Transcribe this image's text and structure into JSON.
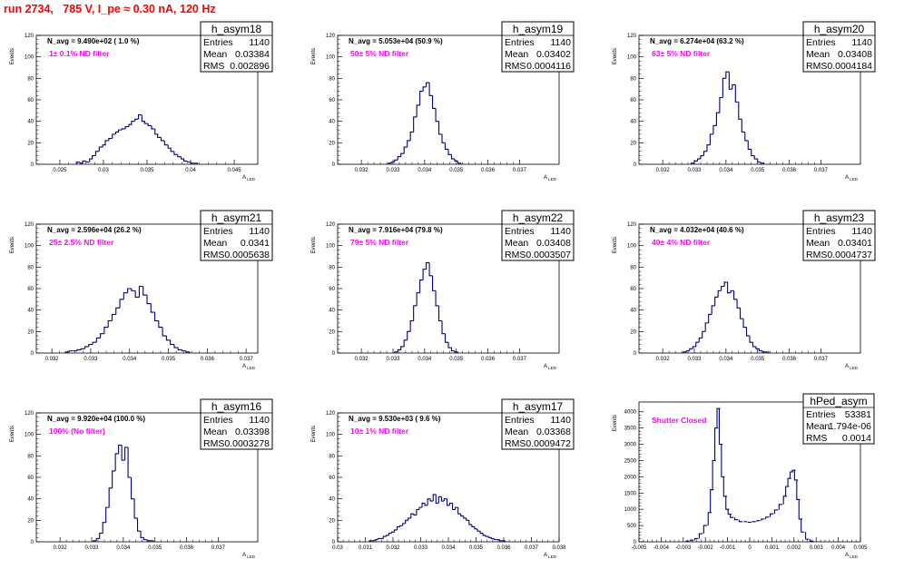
{
  "title": "run 2734,   785 V, I_pe ≈ 0.30 nA, 120 Hz",
  "colors": {
    "title": "#ff0000",
    "hist": "#000080",
    "annotation": "#ff00ff"
  },
  "stats_labels": {
    "entries": "Entries",
    "mean": "Mean",
    "rms": "RMS"
  },
  "y_axis_label": "Events",
  "x_axis_label_main": "A",
  "x_axis_label_sub": "LED",
  "chart_data": [
    {
      "type": "bar",
      "name": "h_asym18",
      "navg": "N_avg = 9.490e+02 ( 1.0 %)",
      "filter": "1± 0.1% ND filter",
      "entries": "1140",
      "mean": "0.03384",
      "rms": "0.002896",
      "xlim": [
        0.0223,
        0.0477
      ],
      "ylim": [
        0,
        120
      ],
      "xticks": [
        "0.025",
        "0.03",
        "0.035",
        "0.04",
        "0.045"
      ],
      "yticks": [
        "0",
        "20",
        "40",
        "60",
        "80",
        "100",
        "120"
      ],
      "x": [
        0.0271,
        0.0275,
        0.0278,
        0.0282,
        0.0286,
        0.0289,
        0.0293,
        0.0297,
        0.0301,
        0.0304,
        0.0308,
        0.0312,
        0.0316,
        0.0319,
        0.0323,
        0.0327,
        0.0331,
        0.0334,
        0.0338,
        0.0342,
        0.0346,
        0.0349,
        0.0353,
        0.0357,
        0.0361,
        0.0364,
        0.0368,
        0.0372,
        0.0376,
        0.0379,
        0.0383,
        0.0387,
        0.0391,
        0.0394,
        0.0398,
        0.0402,
        0.0406
      ],
      "values": [
        2,
        1,
        3,
        2,
        5,
        8,
        12,
        16,
        18,
        22,
        24,
        28,
        30,
        32,
        33,
        35,
        37,
        40,
        42,
        46,
        40,
        38,
        36,
        33,
        28,
        25,
        22,
        18,
        15,
        12,
        9,
        7,
        5,
        3,
        2,
        1,
        1
      ]
    },
    {
      "type": "bar",
      "name": "h_asym19",
      "navg": "N_avg = 5.053e+04 (50.9 %)",
      "filter": "50± 5% ND filter",
      "entries": "1140",
      "mean": "0.03402",
      "rms": "0.0004116",
      "xlim": [
        0.03125,
        0.03825
      ],
      "ylim": [
        0,
        120
      ],
      "xticks": [
        "0.032",
        "0.033",
        "0.034",
        "0.035",
        "0.036",
        "0.037"
      ],
      "yticks": [
        "0",
        "20",
        "40",
        "60",
        "80",
        "100",
        "120"
      ],
      "x": [
        0.0329,
        0.033,
        0.0331,
        0.0332,
        0.0333,
        0.0334,
        0.0335,
        0.0336,
        0.0337,
        0.0338,
        0.0339,
        0.034,
        0.0341,
        0.0342,
        0.0343,
        0.0344,
        0.0345,
        0.0346,
        0.0347,
        0.0348,
        0.0349,
        0.035,
        0.0351
      ],
      "values": [
        1,
        2,
        4,
        7,
        10,
        16,
        22,
        30,
        44,
        55,
        68,
        72,
        76,
        64,
        52,
        40,
        28,
        20,
        14,
        9,
        5,
        3,
        1
      ]
    },
    {
      "type": "bar",
      "name": "h_asym20",
      "navg": "N_avg = 6.274e+04 (63.2 %)",
      "filter": "63± 5% ND filter",
      "entries": "1140",
      "mean": "0.03408",
      "rms": "0.0004184",
      "xlim": [
        0.03125,
        0.03825
      ],
      "ylim": [
        0,
        120
      ],
      "xticks": [
        "0.032",
        "0.033",
        "0.034",
        "0.035",
        "0.036",
        "0.037"
      ],
      "yticks": [
        "0",
        "20",
        "40",
        "60",
        "80",
        "100",
        "120"
      ],
      "x": [
        0.03295,
        0.03305,
        0.03315,
        0.03325,
        0.03335,
        0.03345,
        0.03355,
        0.03365,
        0.03375,
        0.03385,
        0.03395,
        0.03405,
        0.03415,
        0.03425,
        0.03435,
        0.03445,
        0.03455,
        0.03465,
        0.03475,
        0.03485,
        0.03495,
        0.03505,
        0.03515
      ],
      "values": [
        1,
        3,
        5,
        8,
        12,
        18,
        28,
        36,
        48,
        62,
        80,
        86,
        70,
        74,
        58,
        42,
        30,
        22,
        14,
        8,
        5,
        2,
        1
      ]
    },
    {
      "type": "bar",
      "name": "h_asym21",
      "navg": "N_avg = 2.596e+04 (26.2 %)",
      "filter": "25± 2.5% ND filter",
      "entries": "1140",
      "mean": "0.0341",
      "rms": "0.0005638",
      "xlim": [
        0.0316,
        0.0373
      ],
      "ylim": [
        0,
        120
      ],
      "xticks": [
        "0.032",
        "0.033",
        "0.034",
        "0.035",
        "0.036",
        "0.037"
      ],
      "yticks": [
        "0",
        "20",
        "40",
        "60",
        "80",
        "100",
        "120"
      ],
      "x": [
        0.0324,
        0.0325,
        0.0326,
        0.0327,
        0.0328,
        0.0329,
        0.033,
        0.0331,
        0.0332,
        0.0333,
        0.0334,
        0.0335,
        0.0336,
        0.0337,
        0.0338,
        0.0339,
        0.034,
        0.0341,
        0.0342,
        0.0343,
        0.0344,
        0.0345,
        0.0346,
        0.0347,
        0.0348,
        0.0349,
        0.035,
        0.0351,
        0.0352,
        0.0353,
        0.0354,
        0.0355
      ],
      "values": [
        1,
        2,
        2,
        3,
        4,
        6,
        8,
        10,
        14,
        18,
        24,
        30,
        36,
        42,
        50,
        56,
        60,
        58,
        52,
        62,
        54,
        46,
        38,
        30,
        24,
        16,
        12,
        8,
        5,
        3,
        2,
        1
      ]
    },
    {
      "type": "bar",
      "name": "h_asym22",
      "navg": "N_avg = 7.916e+04 (79.8 %)",
      "filter": "79± 5% ND filter",
      "entries": "1140",
      "mean": "0.03408",
      "rms": "0.0003507",
      "xlim": [
        0.03125,
        0.03825
      ],
      "ylim": [
        0,
        120
      ],
      "xticks": [
        "0.032",
        "0.033",
        "0.034",
        "0.035",
        "0.036",
        "0.037"
      ],
      "yticks": [
        "0",
        "20",
        "40",
        "60",
        "80",
        "100",
        "120"
      ],
      "x": [
        0.0331,
        0.0332,
        0.0333,
        0.0334,
        0.0335,
        0.0336,
        0.0337,
        0.0338,
        0.0339,
        0.034,
        0.0341,
        0.0342,
        0.0343,
        0.0344,
        0.0345,
        0.0346,
        0.0347,
        0.0348,
        0.0349,
        0.035
      ],
      "values": [
        1,
        3,
        6,
        12,
        20,
        30,
        44,
        56,
        68,
        78,
        84,
        72,
        58,
        44,
        30,
        18,
        10,
        5,
        2,
        1
      ]
    },
    {
      "type": "bar",
      "name": "h_asym23",
      "navg": "N_avg = 4.032e+04 (40.6 %)",
      "filter": "40± 4% ND filter",
      "entries": "1140",
      "mean": "0.03401",
      "rms": "0.0004737",
      "xlim": [
        0.03125,
        0.03825
      ],
      "ylim": [
        0,
        120
      ],
      "xticks": [
        "0.032",
        "0.033",
        "0.034",
        "0.035",
        "0.036",
        "0.037"
      ],
      "yticks": [
        "0",
        "20",
        "40",
        "60",
        "80",
        "100",
        "120"
      ],
      "x": [
        0.0327,
        0.0328,
        0.0329,
        0.033,
        0.0331,
        0.0332,
        0.0333,
        0.0334,
        0.0335,
        0.0336,
        0.0337,
        0.0338,
        0.0339,
        0.034,
        0.0341,
        0.0342,
        0.0343,
        0.0344,
        0.0345,
        0.0346,
        0.0347,
        0.0348,
        0.0349,
        0.035,
        0.0351,
        0.0352,
        0.0353
      ],
      "values": [
        1,
        2,
        4,
        6,
        10,
        14,
        20,
        28,
        36,
        44,
        52,
        58,
        62,
        66,
        56,
        58,
        50,
        42,
        32,
        24,
        16,
        10,
        6,
        4,
        2,
        1,
        1
      ]
    },
    {
      "type": "bar",
      "name": "h_asym16",
      "navg": "N_avg = 9.920e+04 (100.0 %)",
      "filter": "100% (No filter)",
      "entries": "1140",
      "mean": "0.03398",
      "rms": "0.0003278",
      "xlim": [
        0.03125,
        0.03825
      ],
      "ylim": [
        0,
        120
      ],
      "xticks": [
        "0.032",
        "0.033",
        "0.034",
        "0.035",
        "0.036",
        "0.037"
      ],
      "yticks": [
        "0",
        "20",
        "40",
        "60",
        "80",
        "100",
        "120"
      ],
      "x": [
        0.0331,
        0.0332,
        0.0333,
        0.0334,
        0.0335,
        0.0336,
        0.0337,
        0.0338,
        0.0339,
        0.034,
        0.0341,
        0.0342,
        0.0343,
        0.0344,
        0.0345,
        0.0346,
        0.0347,
        0.0348,
        0.0349
      ],
      "values": [
        1,
        3,
        8,
        18,
        32,
        50,
        66,
        82,
        90,
        76,
        88,
        60,
        40,
        22,
        10,
        4,
        2,
        1,
        1
      ]
    },
    {
      "type": "bar",
      "name": "h_asym17",
      "navg": "N_avg = 9.530e+03 ( 9.6 %)",
      "filter": "10± 1% ND filter",
      "entries": "1140",
      "mean": "0.03368",
      "rms": "0.0009472",
      "xlim": [
        0.03,
        0.038
      ],
      "ylim": [
        0,
        120
      ],
      "xticks": [
        "0.03",
        "0.031",
        "0.032",
        "0.033",
        "0.034",
        "0.035",
        "0.036",
        "0.037",
        "0.038"
      ],
      "yticks": [
        "0",
        "20",
        "40",
        "60",
        "80",
        "100",
        "120"
      ],
      "x": [
        0.0312,
        0.0313,
        0.0314,
        0.0315,
        0.0316,
        0.0317,
        0.0318,
        0.0319,
        0.032,
        0.0321,
        0.0322,
        0.0323,
        0.0324,
        0.0325,
        0.0326,
        0.0327,
        0.0328,
        0.0329,
        0.033,
        0.0331,
        0.0332,
        0.0333,
        0.0334,
        0.0335,
        0.0336,
        0.0337,
        0.0338,
        0.0339,
        0.034,
        0.0341,
        0.0342,
        0.0343,
        0.0344,
        0.0345,
        0.0346,
        0.0347,
        0.0348,
        0.0349,
        0.035,
        0.0351,
        0.0352,
        0.0353,
        0.0354,
        0.0355,
        0.0356,
        0.0357,
        0.0358,
        0.0359,
        0.036
      ],
      "values": [
        1,
        1,
        2,
        3,
        3,
        5,
        6,
        8,
        9,
        11,
        14,
        15,
        17,
        20,
        22,
        26,
        25,
        30,
        32,
        36,
        34,
        40,
        38,
        44,
        36,
        42,
        38,
        40,
        34,
        36,
        30,
        32,
        26,
        24,
        22,
        20,
        16,
        14,
        12,
        10,
        8,
        6,
        5,
        4,
        3,
        2,
        2,
        1,
        1
      ]
    },
    {
      "type": "bar",
      "name": "hPed_asym",
      "navg": "",
      "filter": "Shutter Closed",
      "entries": "53381",
      "mean": "1.794e-06",
      "rms": "0.0014",
      "xlim": [
        -0.005,
        0.005
      ],
      "ylim": [
        0,
        4300
      ],
      "xticks": [
        "-0.005",
        "-0.004",
        "-0.003",
        "-0.002",
        "-0.001",
        "0",
        "0.001",
        "0.002",
        "0.003",
        "0.004",
        "0.005"
      ],
      "yticks": [
        "0",
        "500",
        "1000",
        "1500",
        "2000",
        "2500",
        "3000",
        "3500",
        "4000"
      ],
      "x": [
        -0.0028,
        -0.0026,
        -0.0024,
        -0.0022,
        -0.002,
        -0.0018,
        -0.0017,
        -0.0016,
        -0.0015,
        -0.0014,
        -0.0013,
        -0.0012,
        -0.0011,
        -0.001,
        -0.0009,
        -0.0008,
        -0.0006,
        -0.0004,
        -0.0002,
        0.0,
        0.0002,
        0.0004,
        0.0006,
        0.0008,
        0.001,
        0.0012,
        0.0014,
        0.0016,
        0.0017,
        0.0018,
        0.0019,
        0.002,
        0.0021,
        0.0022,
        0.0023,
        0.0024,
        0.0026,
        0.0028
      ],
      "values": [
        20,
        50,
        100,
        250,
        500,
        900,
        1600,
        2500,
        3500,
        4100,
        3000,
        2000,
        1400,
        1000,
        850,
        750,
        680,
        620,
        620,
        600,
        620,
        650,
        700,
        760,
        860,
        980,
        1150,
        1400,
        1700,
        1950,
        2150,
        2200,
        1900,
        1300,
        700,
        300,
        80,
        20
      ]
    }
  ]
}
